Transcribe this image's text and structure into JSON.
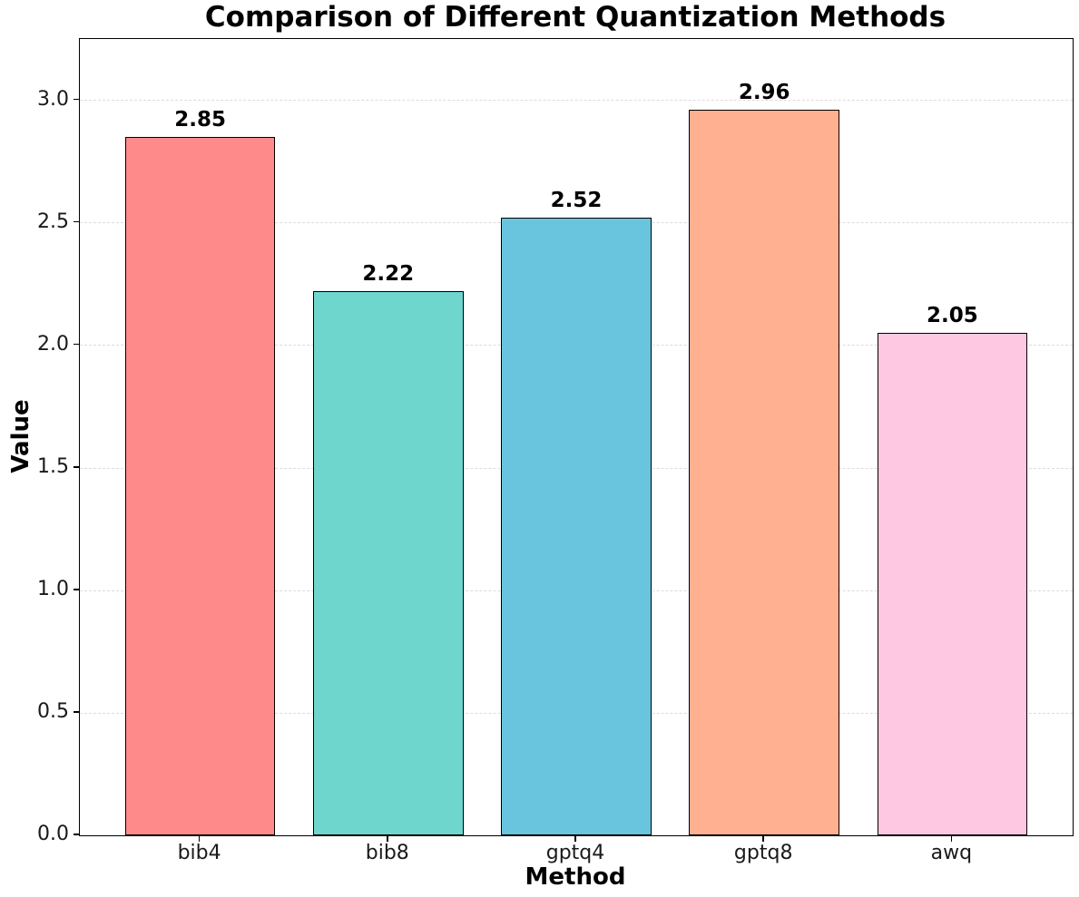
{
  "chart_data": {
    "type": "bar",
    "title": "Comparison of Different Quantization Methods",
    "xlabel": "Method",
    "ylabel": "Value",
    "categories": [
      "bib4",
      "bib8",
      "gptq4",
      "gptq8",
      "awq"
    ],
    "values": [
      2.85,
      2.22,
      2.52,
      2.96,
      2.05
    ],
    "bar_labels": [
      "2.85",
      "2.22",
      "2.52",
      "2.96",
      "2.05"
    ],
    "bar_colors": [
      "#FF8A8A",
      "#6ED6CD",
      "#69C4DD",
      "#FFB090",
      "#FFC8E2"
    ],
    "bar_edge_color": "#000000",
    "ylim": [
      0,
      3.25
    ],
    "yticks": [
      0.0,
      0.5,
      1.0,
      1.5,
      2.0,
      2.5,
      3.0
    ],
    "ytick_labels": [
      "0.0",
      "0.5",
      "1.0",
      "1.5",
      "2.0",
      "2.5",
      "3.0"
    ],
    "grid": true,
    "grid_axis": "y",
    "grid_style": "dashed",
    "grid_color": "#DCDCDC",
    "legend": false,
    "background": "#FFFFFF"
  }
}
